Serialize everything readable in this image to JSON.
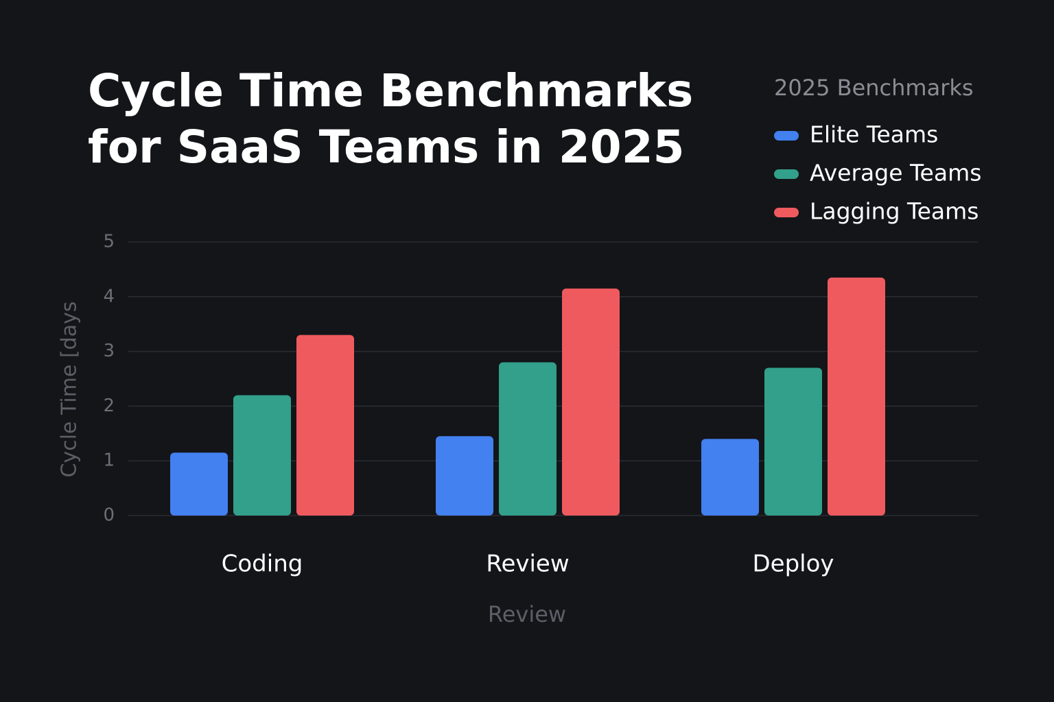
{
  "chart_data": {
    "type": "bar",
    "title": "Cycle Time Benchmarks for SaaS Teams in 2025",
    "legend_title": "2025 Benchmarks",
    "x_label": "Review",
    "y_label": "Cycle Time [days",
    "categories": [
      "Coding",
      "Review",
      "Deploy"
    ],
    "series": [
      {
        "name": "Elite Teams",
        "color": "#4380f0",
        "values": [
          1.15,
          1.45,
          1.4
        ]
      },
      {
        "name": "Average Teams",
        "color": "#32a08a",
        "values": [
          2.2,
          2.8,
          2.7
        ]
      },
      {
        "name": "Lagging Teams",
        "color": "#ef5a5f",
        "values": [
          3.3,
          4.15,
          4.35
        ]
      }
    ],
    "ylim": [
      0,
      5
    ],
    "yticks": [
      0,
      1,
      2,
      3,
      4,
      5
    ],
    "grid": true,
    "legend": "top-right"
  }
}
